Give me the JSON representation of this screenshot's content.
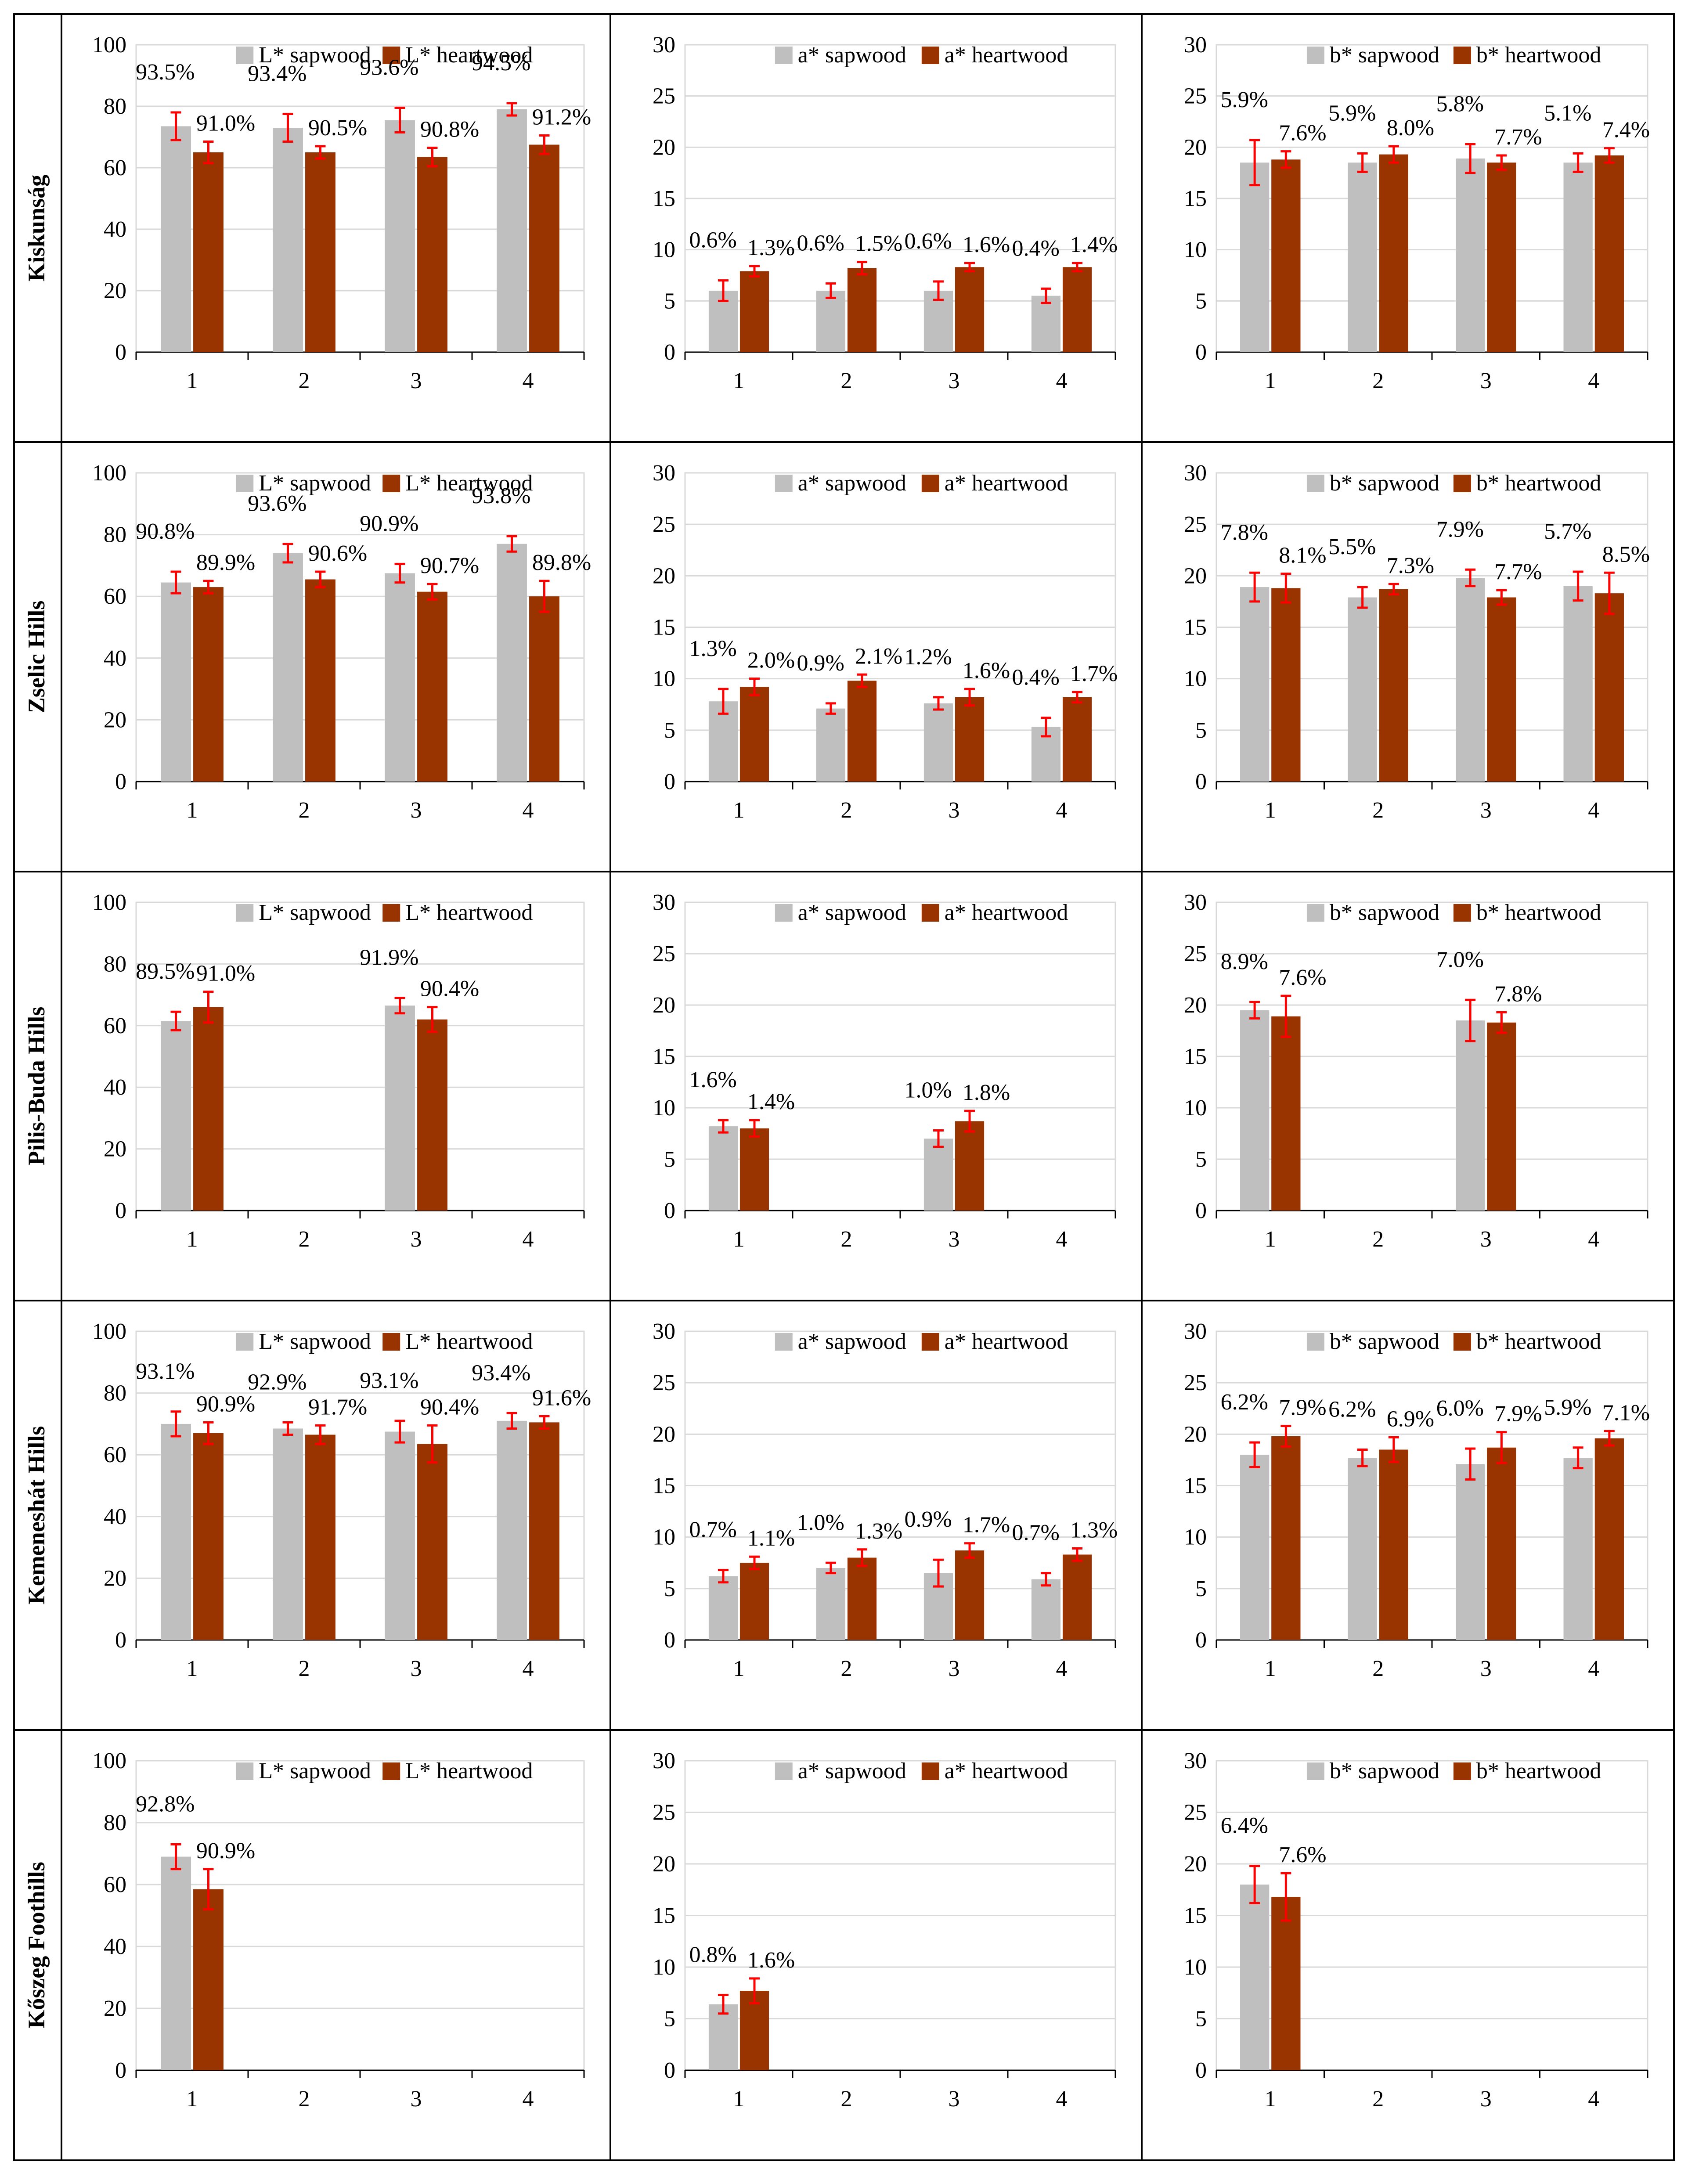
{
  "colors": {
    "sapwood": "#bfbfbf",
    "heartwood": "#993300",
    "errorbar": "#ff0000",
    "gridline": "#d9d9d9",
    "axis": "#000000",
    "frame": "#000000"
  },
  "columns": [
    {
      "ylim": [
        0,
        100
      ],
      "yticks": [
        0,
        20,
        40,
        60,
        80,
        100
      ],
      "legend": [
        "L* sapwood",
        "L* heartwood"
      ]
    },
    {
      "ylim": [
        0,
        30
      ],
      "yticks": [
        0,
        5,
        10,
        15,
        20,
        25,
        30
      ],
      "legend": [
        "a* sapwood",
        "a* heartwood"
      ]
    },
    {
      "ylim": [
        0,
        30
      ],
      "yticks": [
        0,
        5,
        10,
        15,
        20,
        25,
        30
      ],
      "legend": [
        "b* sapwood",
        "b* heartwood"
      ]
    }
  ],
  "chart_data": [
    {
      "region": "Kiskunság",
      "type": "bar",
      "categories": [
        "1",
        "2",
        "3",
        "4"
      ],
      "legend_position": "top",
      "series": [
        {
          "name": "L* sapwood",
          "values": [
            73.5,
            73.0,
            75.5,
            79.0
          ],
          "errors": [
            4.5,
            4.5,
            4.0,
            2.0
          ],
          "labels": [
            "93.5%",
            "93.4%",
            "93.6%",
            "94.5%"
          ]
        },
        {
          "name": "L* heartwood",
          "values": [
            65.0,
            65.0,
            63.5,
            67.5
          ],
          "errors": [
            3.5,
            2.0,
            3.0,
            3.0
          ],
          "labels": [
            "91.0%",
            "90.5%",
            "90.8%",
            "91.2%"
          ]
        }
      ]
    },
    {
      "region": "Kiskunság",
      "type": "bar",
      "categories": [
        "1",
        "2",
        "3",
        "4"
      ],
      "legend_position": "top",
      "series": [
        {
          "name": "a* sapwood",
          "values": [
            6.0,
            6.0,
            6.0,
            5.5
          ],
          "errors": [
            1.0,
            0.7,
            0.9,
            0.7
          ],
          "labels": [
            "0.6%",
            "0.6%",
            "0.6%",
            "0.4%"
          ]
        },
        {
          "name": "a* heartwood",
          "values": [
            7.9,
            8.2,
            8.3,
            8.3
          ],
          "errors": [
            0.5,
            0.6,
            0.4,
            0.4
          ],
          "labels": [
            "1.3%",
            "1.5%",
            "1.6%",
            "1.4%"
          ]
        }
      ]
    },
    {
      "region": "Kiskunság",
      "type": "bar",
      "categories": [
        "1",
        "2",
        "3",
        "4"
      ],
      "legend_position": "top",
      "series": [
        {
          "name": "b* sapwood",
          "values": [
            18.5,
            18.5,
            18.9,
            18.5
          ],
          "errors": [
            2.2,
            0.9,
            1.4,
            0.9
          ],
          "labels": [
            "5.9%",
            "5.9%",
            "5.8%",
            "5.1%"
          ]
        },
        {
          "name": "b* heartwood",
          "values": [
            18.8,
            19.3,
            18.5,
            19.2
          ],
          "errors": [
            0.8,
            0.8,
            0.7,
            0.7
          ],
          "labels": [
            "7.6%",
            "8.0%",
            "7.7%",
            "7.4%"
          ]
        }
      ]
    },
    {
      "region": "Zselic Hills",
      "type": "bar",
      "categories": [
        "1",
        "2",
        "3",
        "4"
      ],
      "legend_position": "top",
      "series": [
        {
          "name": "L* sapwood",
          "values": [
            64.5,
            74.0,
            67.5,
            77.0
          ],
          "errors": [
            3.5,
            3.0,
            3.0,
            2.5
          ],
          "labels": [
            "90.8%",
            "93.6%",
            "90.9%",
            "93.8%"
          ]
        },
        {
          "name": "L* heartwood",
          "values": [
            63.0,
            65.5,
            61.5,
            60.0
          ],
          "errors": [
            2.0,
            2.5,
            2.5,
            5.0
          ],
          "labels": [
            "89.9%",
            "90.6%",
            "90.7%",
            "89.8%"
          ]
        }
      ]
    },
    {
      "region": "Zselic Hills",
      "type": "bar",
      "categories": [
        "1",
        "2",
        "3",
        "4"
      ],
      "legend_position": "top",
      "series": [
        {
          "name": "a* sapwood",
          "values": [
            7.8,
            7.1,
            7.6,
            5.3
          ],
          "errors": [
            1.2,
            0.5,
            0.6,
            0.9
          ],
          "labels": [
            "1.3%",
            "0.9%",
            "1.2%",
            "0.4%"
          ]
        },
        {
          "name": "a* heartwood",
          "values": [
            9.2,
            9.8,
            8.2,
            8.2
          ],
          "errors": [
            0.8,
            0.6,
            0.8,
            0.5
          ],
          "labels": [
            "2.0%",
            "2.1%",
            "1.6%",
            "1.7%"
          ]
        }
      ]
    },
    {
      "region": "Zselic Hills",
      "type": "bar",
      "categories": [
        "1",
        "2",
        "3",
        "4"
      ],
      "legend_position": "top",
      "series": [
        {
          "name": "b* sapwood",
          "values": [
            18.9,
            17.9,
            19.8,
            19.0
          ],
          "errors": [
            1.4,
            1.0,
            0.8,
            1.4
          ],
          "labels": [
            "7.8%",
            "5.5%",
            "7.9%",
            "5.7%"
          ]
        },
        {
          "name": "b* heartwood",
          "values": [
            18.8,
            18.7,
            17.9,
            18.3
          ],
          "errors": [
            1.4,
            0.5,
            0.7,
            2.0
          ],
          "labels": [
            "8.1%",
            "7.3%",
            "7.7%",
            "8.5%"
          ]
        }
      ]
    },
    {
      "region": "Pilis-Buda Hills",
      "type": "bar",
      "categories": [
        "1",
        "2",
        "3",
        "4"
      ],
      "legend_position": "top",
      "series": [
        {
          "name": "L* sapwood",
          "values": [
            61.5,
            null,
            66.5,
            null
          ],
          "errors": [
            3.0,
            0,
            2.5,
            0
          ],
          "labels": [
            "89.5%",
            "",
            "91.9%",
            ""
          ]
        },
        {
          "name": "L* heartwood",
          "values": [
            66.0,
            null,
            62.0,
            null
          ],
          "errors": [
            5.0,
            0,
            4.0,
            0
          ],
          "labels": [
            "91.0%",
            "",
            "90.4%",
            ""
          ]
        }
      ]
    },
    {
      "region": "Pilis-Buda Hills",
      "type": "bar",
      "categories": [
        "1",
        "2",
        "3",
        "4"
      ],
      "legend_position": "top",
      "series": [
        {
          "name": "a* sapwood",
          "values": [
            8.2,
            null,
            7.0,
            null
          ],
          "errors": [
            0.6,
            0,
            0.8,
            0
          ],
          "labels": [
            "1.6%",
            "",
            "1.0%",
            ""
          ]
        },
        {
          "name": "a* heartwood",
          "values": [
            8.0,
            null,
            8.7,
            null
          ],
          "errors": [
            0.8,
            0,
            1.0,
            0
          ],
          "labels": [
            "1.4%",
            "",
            "1.8%",
            ""
          ]
        }
      ]
    },
    {
      "region": "Pilis-Buda Hills",
      "type": "bar",
      "categories": [
        "1",
        "2",
        "3",
        "4"
      ],
      "legend_position": "top",
      "series": [
        {
          "name": "b* sapwood",
          "values": [
            19.5,
            null,
            18.5,
            null
          ],
          "errors": [
            0.8,
            0,
            2.0,
            0
          ],
          "labels": [
            "8.9%",
            "",
            "7.0%",
            ""
          ]
        },
        {
          "name": "b* heartwood",
          "values": [
            18.9,
            null,
            18.3,
            null
          ],
          "errors": [
            2.0,
            0,
            1.0,
            0
          ],
          "labels": [
            "7.6%",
            "",
            "7.8%",
            ""
          ]
        }
      ]
    },
    {
      "region": "Kemeneshát Hills",
      "type": "bar",
      "categories": [
        "1",
        "2",
        "3",
        "4"
      ],
      "legend_position": "top",
      "series": [
        {
          "name": "L* sapwood",
          "values": [
            70.0,
            68.5,
            67.5,
            71.0
          ],
          "errors": [
            4.0,
            2.0,
            3.5,
            2.5
          ],
          "labels": [
            "93.1%",
            "92.9%",
            "93.1%",
            "93.4%"
          ]
        },
        {
          "name": "L* heartwood",
          "values": [
            67.0,
            66.5,
            63.5,
            70.5
          ],
          "errors": [
            3.5,
            3.0,
            6.0,
            2.0
          ],
          "labels": [
            "90.9%",
            "91.7%",
            "90.4%",
            "91.6%"
          ]
        }
      ]
    },
    {
      "region": "Kemeneshát Hills",
      "type": "bar",
      "categories": [
        "1",
        "2",
        "3",
        "4"
      ],
      "legend_position": "top",
      "series": [
        {
          "name": "a* sapwood",
          "values": [
            6.2,
            7.0,
            6.5,
            5.9
          ],
          "errors": [
            0.6,
            0.5,
            1.3,
            0.6
          ],
          "labels": [
            "0.7%",
            "1.0%",
            "0.9%",
            "0.7%"
          ]
        },
        {
          "name": "a* heartwood",
          "values": [
            7.5,
            8.0,
            8.7,
            8.3
          ],
          "errors": [
            0.6,
            0.8,
            0.7,
            0.6
          ],
          "labels": [
            "1.1%",
            "1.3%",
            "1.7%",
            "1.3%"
          ]
        }
      ]
    },
    {
      "region": "Kemeneshát Hills",
      "type": "bar",
      "categories": [
        "1",
        "2",
        "3",
        "4"
      ],
      "legend_position": "top",
      "series": [
        {
          "name": "b* sapwood",
          "values": [
            18.0,
            17.7,
            17.1,
            17.7
          ],
          "errors": [
            1.2,
            0.8,
            1.5,
            1.0
          ],
          "labels": [
            "6.2%",
            "6.2%",
            "6.0%",
            "5.9%"
          ]
        },
        {
          "name": "b* heartwood",
          "values": [
            19.8,
            18.5,
            18.7,
            19.6
          ],
          "errors": [
            1.0,
            1.2,
            1.5,
            0.7
          ],
          "labels": [
            "7.9%",
            "6.9%",
            "7.9%",
            "7.1%"
          ]
        }
      ]
    },
    {
      "region": "Kőszeg Foothills",
      "type": "bar",
      "categories": [
        "1",
        "2",
        "3",
        "4"
      ],
      "legend_position": "top",
      "series": [
        {
          "name": "L* sapwood",
          "values": [
            69.0,
            null,
            null,
            null
          ],
          "errors": [
            4.0,
            0,
            0,
            0
          ],
          "labels": [
            "92.8%",
            "",
            "",
            ""
          ]
        },
        {
          "name": "L* heartwood",
          "values": [
            58.5,
            null,
            null,
            null
          ],
          "errors": [
            6.5,
            0,
            0,
            0
          ],
          "labels": [
            "90.9%",
            "",
            "",
            ""
          ]
        }
      ]
    },
    {
      "region": "Kőszeg Foothills",
      "type": "bar",
      "categories": [
        "1",
        "2",
        "3",
        "4"
      ],
      "legend_position": "top",
      "series": [
        {
          "name": "a* sapwood",
          "values": [
            6.4,
            null,
            null,
            null
          ],
          "errors": [
            0.9,
            0,
            0,
            0
          ],
          "labels": [
            "0.8%",
            "",
            "",
            ""
          ]
        },
        {
          "name": "a* heartwood",
          "values": [
            7.7,
            null,
            null,
            null
          ],
          "errors": [
            1.2,
            0,
            0,
            0
          ],
          "labels": [
            "1.6%",
            "",
            "",
            ""
          ]
        }
      ]
    },
    {
      "region": "Kőszeg Foothills",
      "type": "bar",
      "categories": [
        "1",
        "2",
        "3",
        "4"
      ],
      "legend_position": "top",
      "series": [
        {
          "name": "b* sapwood",
          "values": [
            18.0,
            null,
            null,
            null
          ],
          "errors": [
            1.8,
            0,
            0,
            0
          ],
          "labels": [
            "6.4%",
            "",
            "",
            ""
          ]
        },
        {
          "name": "b* heartwood",
          "values": [
            16.8,
            null,
            null,
            null
          ],
          "errors": [
            2.3,
            0,
            0,
            0
          ],
          "labels": [
            "7.6%",
            "",
            "",
            ""
          ]
        }
      ]
    }
  ],
  "rows": [
    {
      "label": "Kiskunság"
    },
    {
      "label": "Zselic Hills"
    },
    {
      "label": "Pilis-Buda Hills"
    },
    {
      "label": "Kemeneshát Hills"
    },
    {
      "label": "Kőszeg Foothills"
    }
  ]
}
